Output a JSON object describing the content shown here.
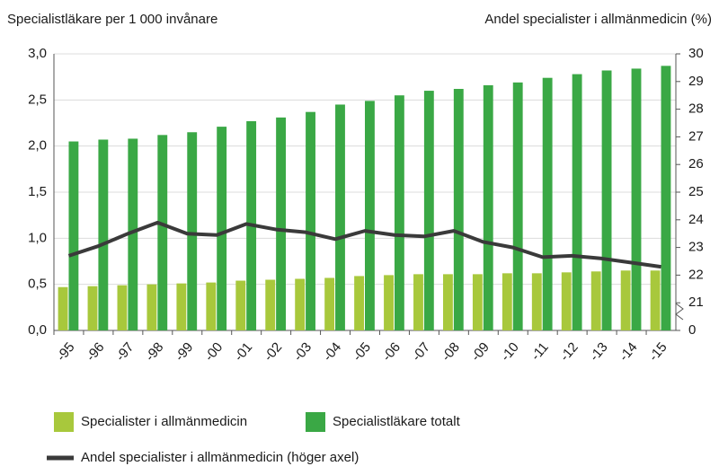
{
  "chart_data": {
    "type": "bar",
    "y_axis_label": "Specialistläkare per 1 000 invånare",
    "y2_axis_label": "Andel specialister i allmänmedicin (%)",
    "categories": [
      "-95",
      "-96",
      "-97",
      "-98",
      "-99",
      "-00",
      "-01",
      "-02",
      "-03",
      "-04",
      "-05",
      "-06",
      "-07",
      "-08",
      "-09",
      "-10",
      "-11",
      "-12",
      "-13",
      "-14",
      "-15"
    ],
    "series": [
      {
        "name": "Specialister i allmänmedicin",
        "type": "bar",
        "color": "#a8c83c",
        "values": [
          0.47,
          0.48,
          0.49,
          0.5,
          0.51,
          0.52,
          0.54,
          0.55,
          0.56,
          0.57,
          0.59,
          0.6,
          0.61,
          0.61,
          0.61,
          0.62,
          0.62,
          0.63,
          0.64,
          0.65,
          0.65
        ]
      },
      {
        "name": "Specialistläkare totalt",
        "type": "bar",
        "color": "#3aa845",
        "values": [
          2.05,
          2.07,
          2.08,
          2.12,
          2.15,
          2.21,
          2.27,
          2.31,
          2.37,
          2.45,
          2.49,
          2.55,
          2.6,
          2.62,
          2.66,
          2.69,
          2.74,
          2.78,
          2.82,
          2.84,
          2.87
        ]
      },
      {
        "name": "Andel specialister i allmänmedicin (höger axel)",
        "type": "line",
        "axis": "y2",
        "color": "#3a3a3a",
        "values": [
          22.7,
          23.05,
          23.5,
          23.9,
          23.5,
          23.45,
          23.85,
          23.65,
          23.55,
          23.3,
          23.6,
          23.45,
          23.4,
          23.6,
          23.2,
          23.0,
          22.65,
          22.7,
          22.6,
          22.45,
          22.3
        ]
      }
    ],
    "ylim": [
      0,
      3
    ],
    "yticks": [
      {
        "value": 0,
        "label": "0,0"
      },
      {
        "value": 0.5,
        "label": "0,5"
      },
      {
        "value": 1,
        "label": "1,0"
      },
      {
        "value": 1.5,
        "label": "1,5"
      },
      {
        "value": 2,
        "label": "2,0"
      },
      {
        "value": 2.5,
        "label": "2,5"
      },
      {
        "value": 3,
        "label": "3,0"
      }
    ],
    "y2lim": [
      20,
      30
    ],
    "y2ticks": [
      {
        "value": 20,
        "label": "0"
      },
      21,
      22,
      23,
      24,
      25,
      26,
      27,
      28,
      29,
      30
    ],
    "grid": true
  }
}
